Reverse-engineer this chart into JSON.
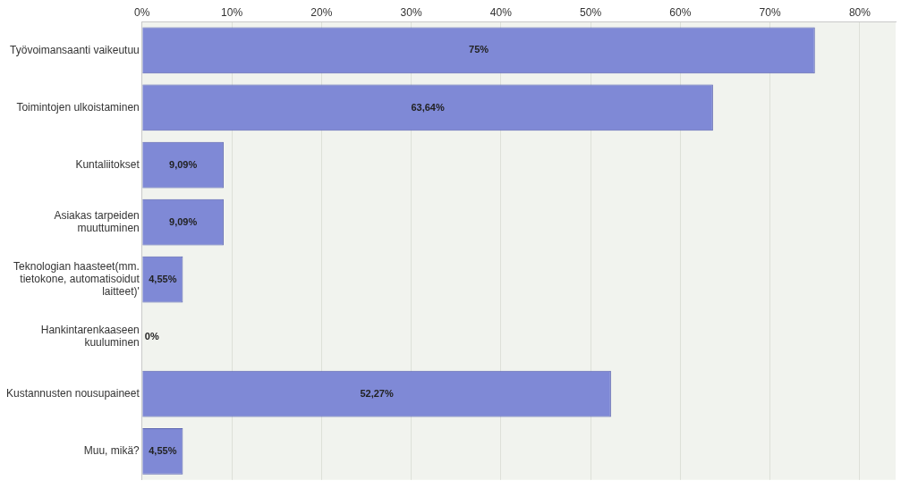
{
  "chart_data": {
    "type": "bar",
    "orientation": "horizontal",
    "categories": [
      "Työvoimansaanti vaikeutuu",
      "Toimintojen ulkoistaminen",
      "Kuntaliitokset",
      "Asiakas tarpeiden muuttuminen",
      "Teknologian haasteet(mm. tietokone, automatisoidut laitteet)'",
      "Hankintarenkaaseen kuuluminen",
      "Kustannusten nousupaineet",
      "Muu, mikä?"
    ],
    "values": [
      75,
      63.64,
      9.09,
      9.09,
      4.55,
      0,
      52.27,
      4.55
    ],
    "value_labels": [
      "75%",
      "63,64%",
      "9,09%",
      "9,09%",
      "4,55%",
      "0%",
      "52,27%",
      "4,55%"
    ],
    "color": "#7f89d6",
    "xlim": [
      0,
      84
    ],
    "xticks": [
      {
        "value": 0,
        "label": "0%"
      },
      {
        "value": 10,
        "label": "10%"
      },
      {
        "value": 20,
        "label": "20%"
      },
      {
        "value": 30,
        "label": "30%"
      },
      {
        "value": 40,
        "label": "40%"
      },
      {
        "value": 50,
        "label": "50%"
      },
      {
        "value": 60,
        "label": "60%"
      },
      {
        "value": 70,
        "label": "70%"
      },
      {
        "value": 80,
        "label": "80%"
      }
    ],
    "grid": "x",
    "legend": false
  }
}
